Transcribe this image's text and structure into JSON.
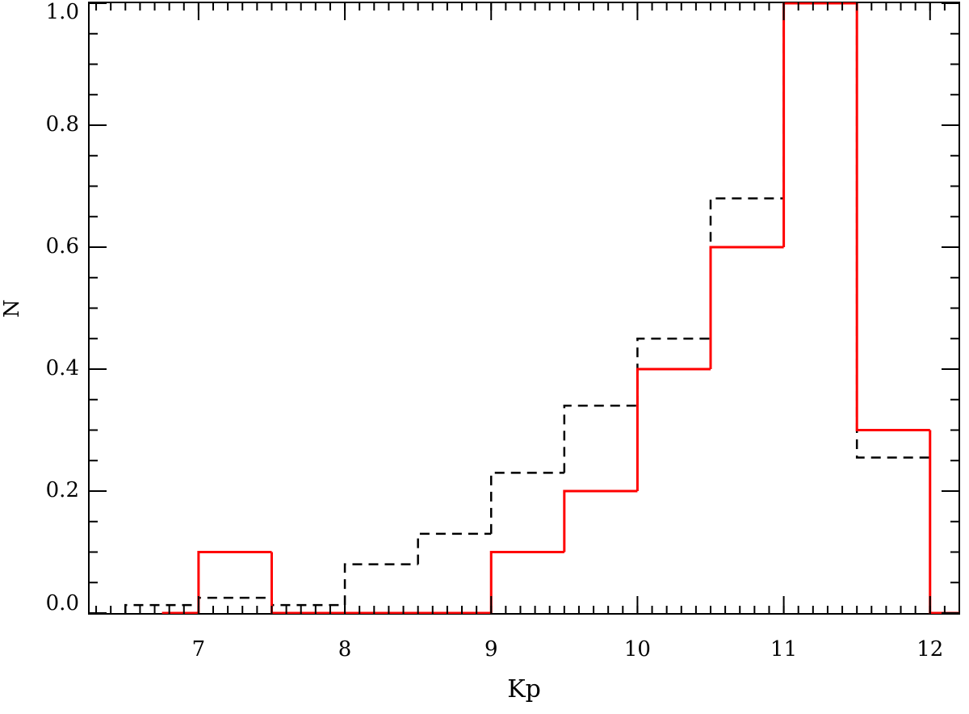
{
  "chart_data": {
    "type": "histogram",
    "x_label": "Kp",
    "y_label": "N",
    "xlim": [
      6.25,
      12.2
    ],
    "ylim": [
      0,
      1.0
    ],
    "xticks": [
      7,
      8,
      9,
      10,
      11,
      12
    ],
    "yticks": [
      {
        "value": 0,
        "label": "0.0"
      },
      0.2,
      0.4,
      0.6,
      0.8,
      {
        "value": 1,
        "label": "1.0"
      }
    ],
    "series": [
      {
        "color": "#000000",
        "dashed": true,
        "bins": [
          6.5,
          7,
          7.5,
          8,
          8.5,
          9,
          9.5,
          10,
          10.5,
          11,
          11.5,
          12
        ],
        "values": [
          0.013,
          0.025,
          0.013,
          0.08,
          0.13,
          0.23,
          0.34,
          0.45,
          0.68,
          1.0,
          0.255
        ]
      },
      {
        "color": "#ff0000",
        "dashed": false,
        "bins": [
          6.75,
          7,
          7.5,
          8,
          8.5,
          9,
          9.5,
          10,
          10.5,
          11,
          11.5,
          12,
          12.25
        ],
        "values": [
          0,
          0.1,
          0,
          0,
          0,
          0.1,
          0.2,
          0.4,
          0.6,
          1.0,
          0.3,
          0
        ]
      }
    ]
  }
}
